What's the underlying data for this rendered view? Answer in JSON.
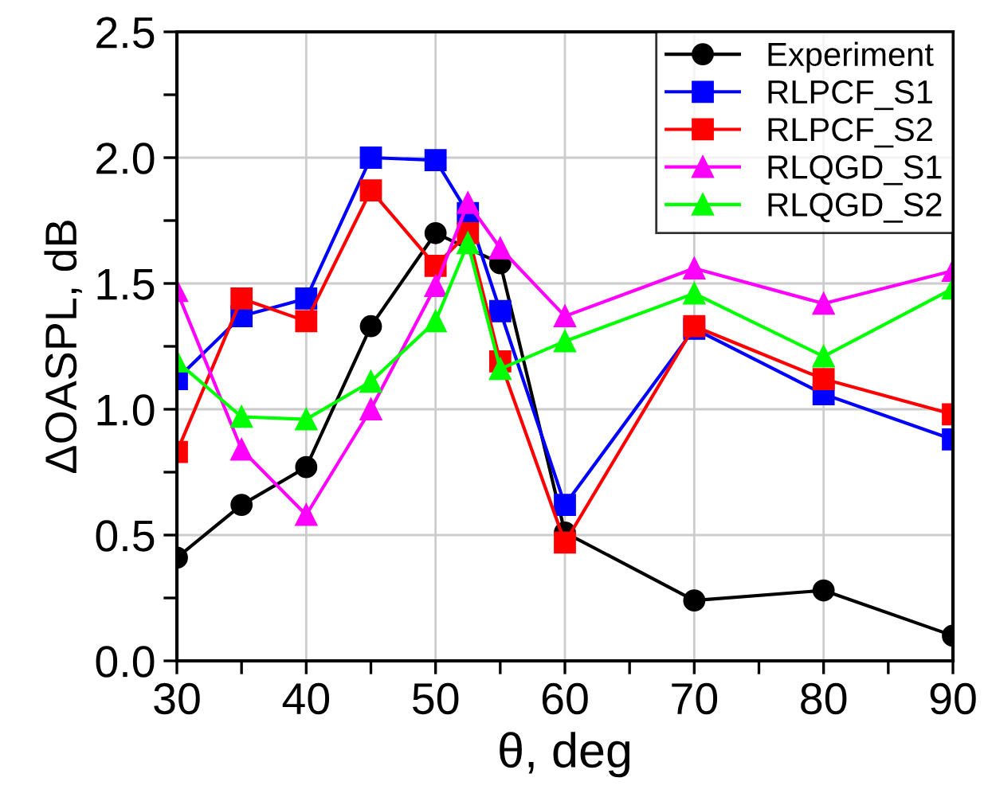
{
  "chart_data": {
    "type": "line",
    "xlabel": "θ, deg",
    "ylabel": "ΔOASPL, dB",
    "xlim": [
      30,
      90
    ],
    "ylim": [
      0,
      2.5
    ],
    "xticks": [
      30,
      {
        "value": 35,
        "label": null
      },
      40,
      {
        "value": 45,
        "label": null
      },
      50,
      {
        "value": 55,
        "label": null
      },
      60,
      {
        "value": 65,
        "label": null
      },
      70,
      {
        "value": 75,
        "label": null
      },
      80,
      {
        "value": 85,
        "label": null
      },
      90
    ],
    "yticks": [
      {
        "value": 0,
        "label": "0.0"
      },
      {
        "value": 0.25,
        "label": null
      },
      {
        "value": 0.5,
        "label": "0.5"
      },
      {
        "value": 0.75,
        "label": null
      },
      {
        "value": 1,
        "label": "1.0"
      },
      {
        "value": 1.25,
        "label": null
      },
      {
        "value": 1.5,
        "label": "1.5"
      },
      {
        "value": 1.75,
        "label": null
      },
      {
        "value": 2,
        "label": "2.0"
      },
      {
        "value": 2.25,
        "label": null
      },
      {
        "value": 2.5,
        "label": "2.5"
      }
    ],
    "grid": true,
    "legend": "top right",
    "series": [
      {
        "name": "Experiment",
        "color": "#000000",
        "marker": "circle",
        "x": [
          30,
          35,
          40,
          45,
          50,
          55,
          60,
          70,
          80,
          90
        ],
        "values": [
          0.41,
          0.62,
          0.77,
          1.33,
          1.7,
          1.58,
          0.51,
          0.24,
          0.28,
          0.1
        ]
      },
      {
        "name": "RLPCF_S1",
        "color": "#0000ff",
        "marker": "square",
        "x": [
          30,
          35,
          40,
          45,
          50,
          52.5,
          55,
          60,
          70,
          80,
          90
        ],
        "values": [
          1.12,
          1.37,
          1.44,
          2.0,
          1.99,
          1.78,
          1.39,
          0.62,
          1.32,
          1.06,
          0.88
        ]
      },
      {
        "name": "RLPCF_S2",
        "color": "#ff0000",
        "marker": "square",
        "x": [
          30,
          35,
          40,
          45,
          50,
          52.5,
          55,
          60,
          70,
          80,
          90
        ],
        "values": [
          0.83,
          1.44,
          1.35,
          1.87,
          1.57,
          1.7,
          1.19,
          0.47,
          1.33,
          1.12,
          0.98
        ]
      },
      {
        "name": "RLQGD_S1",
        "color": "#ff00ff",
        "marker": "triangle",
        "x": [
          30,
          35,
          40,
          45,
          50,
          52.5,
          55,
          60,
          70,
          80,
          90
        ],
        "values": [
          1.47,
          0.84,
          0.58,
          1.0,
          1.49,
          1.82,
          1.64,
          1.37,
          1.56,
          1.42,
          1.55
        ]
      },
      {
        "name": "RLQGD_S2",
        "color": "#00ff00",
        "marker": "triangle",
        "x": [
          30,
          35,
          40,
          45,
          50,
          52.5,
          55,
          60,
          70,
          80,
          90
        ],
        "values": [
          1.19,
          0.97,
          0.96,
          1.11,
          1.35,
          1.66,
          1.16,
          1.27,
          1.46,
          1.21,
          1.48
        ]
      }
    ]
  }
}
